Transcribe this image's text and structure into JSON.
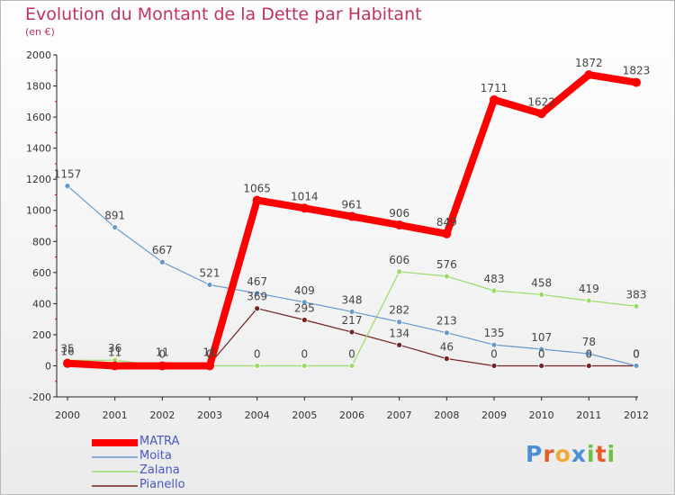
{
  "chart_data": {
    "type": "line",
    "title": "Evolution du Montant de la Dette par Habitant",
    "subtitle": "(en €)",
    "xlabel": "",
    "ylabel": "",
    "x": [
      "2000",
      "2001",
      "2002",
      "2003",
      "2004",
      "2005",
      "2006",
      "2007",
      "2008",
      "2009",
      "2010",
      "2011",
      "2012"
    ],
    "ylim": [
      -200,
      2000
    ],
    "yticks": [
      -200,
      0,
      200,
      400,
      600,
      800,
      1000,
      1200,
      1400,
      1600,
      1800,
      2000
    ],
    "grid": false,
    "legend_position": "bottom-left",
    "series": [
      {
        "name": "MATRA",
        "color": "#ff0000",
        "values": [
          16,
          0,
          0,
          0,
          1065,
          1014,
          961,
          906,
          849,
          1711,
          1622,
          1872,
          1823
        ],
        "labels": [
          "16",
          "",
          "",
          "",
          "1065",
          "1014",
          "961",
          "906",
          "849",
          "1711",
          "1622",
          "1872",
          "1823"
        ]
      },
      {
        "name": "Moita",
        "color": "#6699cc",
        "values": [
          1157,
          891,
          667,
          521,
          467,
          409,
          348,
          282,
          213,
          135,
          107,
          78,
          0
        ],
        "labels": [
          "1157",
          "891",
          "667",
          "521",
          "467",
          "409",
          "348",
          "282",
          "213",
          "135",
          "107",
          "78",
          "0"
        ]
      },
      {
        "name": "Zalana",
        "color": "#99dd66",
        "values": [
          35,
          36,
          0,
          0,
          0,
          0,
          0,
          606,
          576,
          483,
          458,
          419,
          383
        ],
        "labels": [
          "35",
          "36",
          "0",
          "0",
          "0",
          "0",
          "0",
          "606",
          "576",
          "483",
          "458",
          "419",
          "383"
        ]
      },
      {
        "name": "Pianello",
        "color": "#772222",
        "values": [
          16,
          11,
          11,
          11,
          369,
          295,
          217,
          134,
          46,
          0,
          0,
          0,
          0
        ],
        "labels": [
          "",
          "11",
          "11",
          "11",
          "369",
          "295",
          "217",
          "134",
          "46",
          "0",
          "0",
          "0",
          "0"
        ]
      }
    ]
  },
  "logo": {
    "p": "P",
    "r": "r",
    "o": "o",
    "x": "x",
    "i1": "i",
    "t": "t",
    "i2": "i",
    "colors": [
      "#4b8fd6",
      "#e55c2b",
      "#f2a93b",
      "#4b8fd6",
      "#6cbf47",
      "#e55c2b",
      "#6cbf47"
    ]
  }
}
